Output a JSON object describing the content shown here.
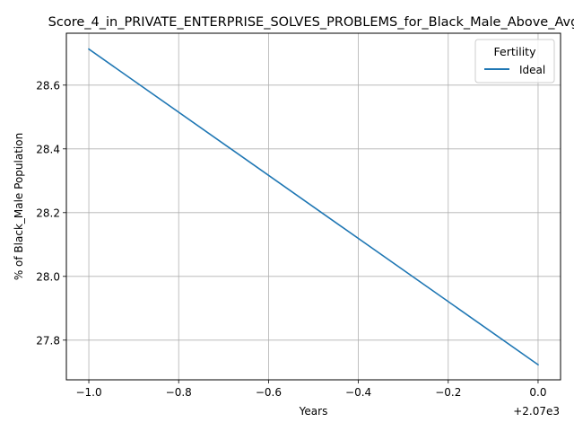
{
  "chart_data": {
    "type": "line",
    "title": "Score_4_in_PRIVATE_ENTERPRISE_SOLVES_PROBLEMS_for_Black_Male_Above_Avg",
    "xlabel": "Years",
    "ylabel": "% of Black_Male Population",
    "x_offset_label": "+2.07e3",
    "xlim": [
      -1.05,
      0.05
    ],
    "ylim": [
      27.6755,
      28.7628
    ],
    "xticks": [
      -1.0,
      -0.8,
      -0.6,
      -0.4,
      -0.2,
      0.0
    ],
    "xtick_labels": [
      "−1.0",
      "−0.8",
      "−0.6",
      "−0.4",
      "−0.2",
      "0.0"
    ],
    "yticks": [
      27.8,
      28.0,
      28.2,
      28.4,
      28.6
    ],
    "ytick_labels": [
      "27.8",
      "28.0",
      "28.2",
      "28.4",
      "28.6"
    ],
    "grid": true,
    "legend": {
      "title": "Fertility",
      "placement": "top-right"
    },
    "series": [
      {
        "name": "Ideal",
        "color": "#1f77b4",
        "x": [
          -1.0,
          0.0
        ],
        "y": [
          28.713,
          27.723
        ]
      }
    ]
  }
}
